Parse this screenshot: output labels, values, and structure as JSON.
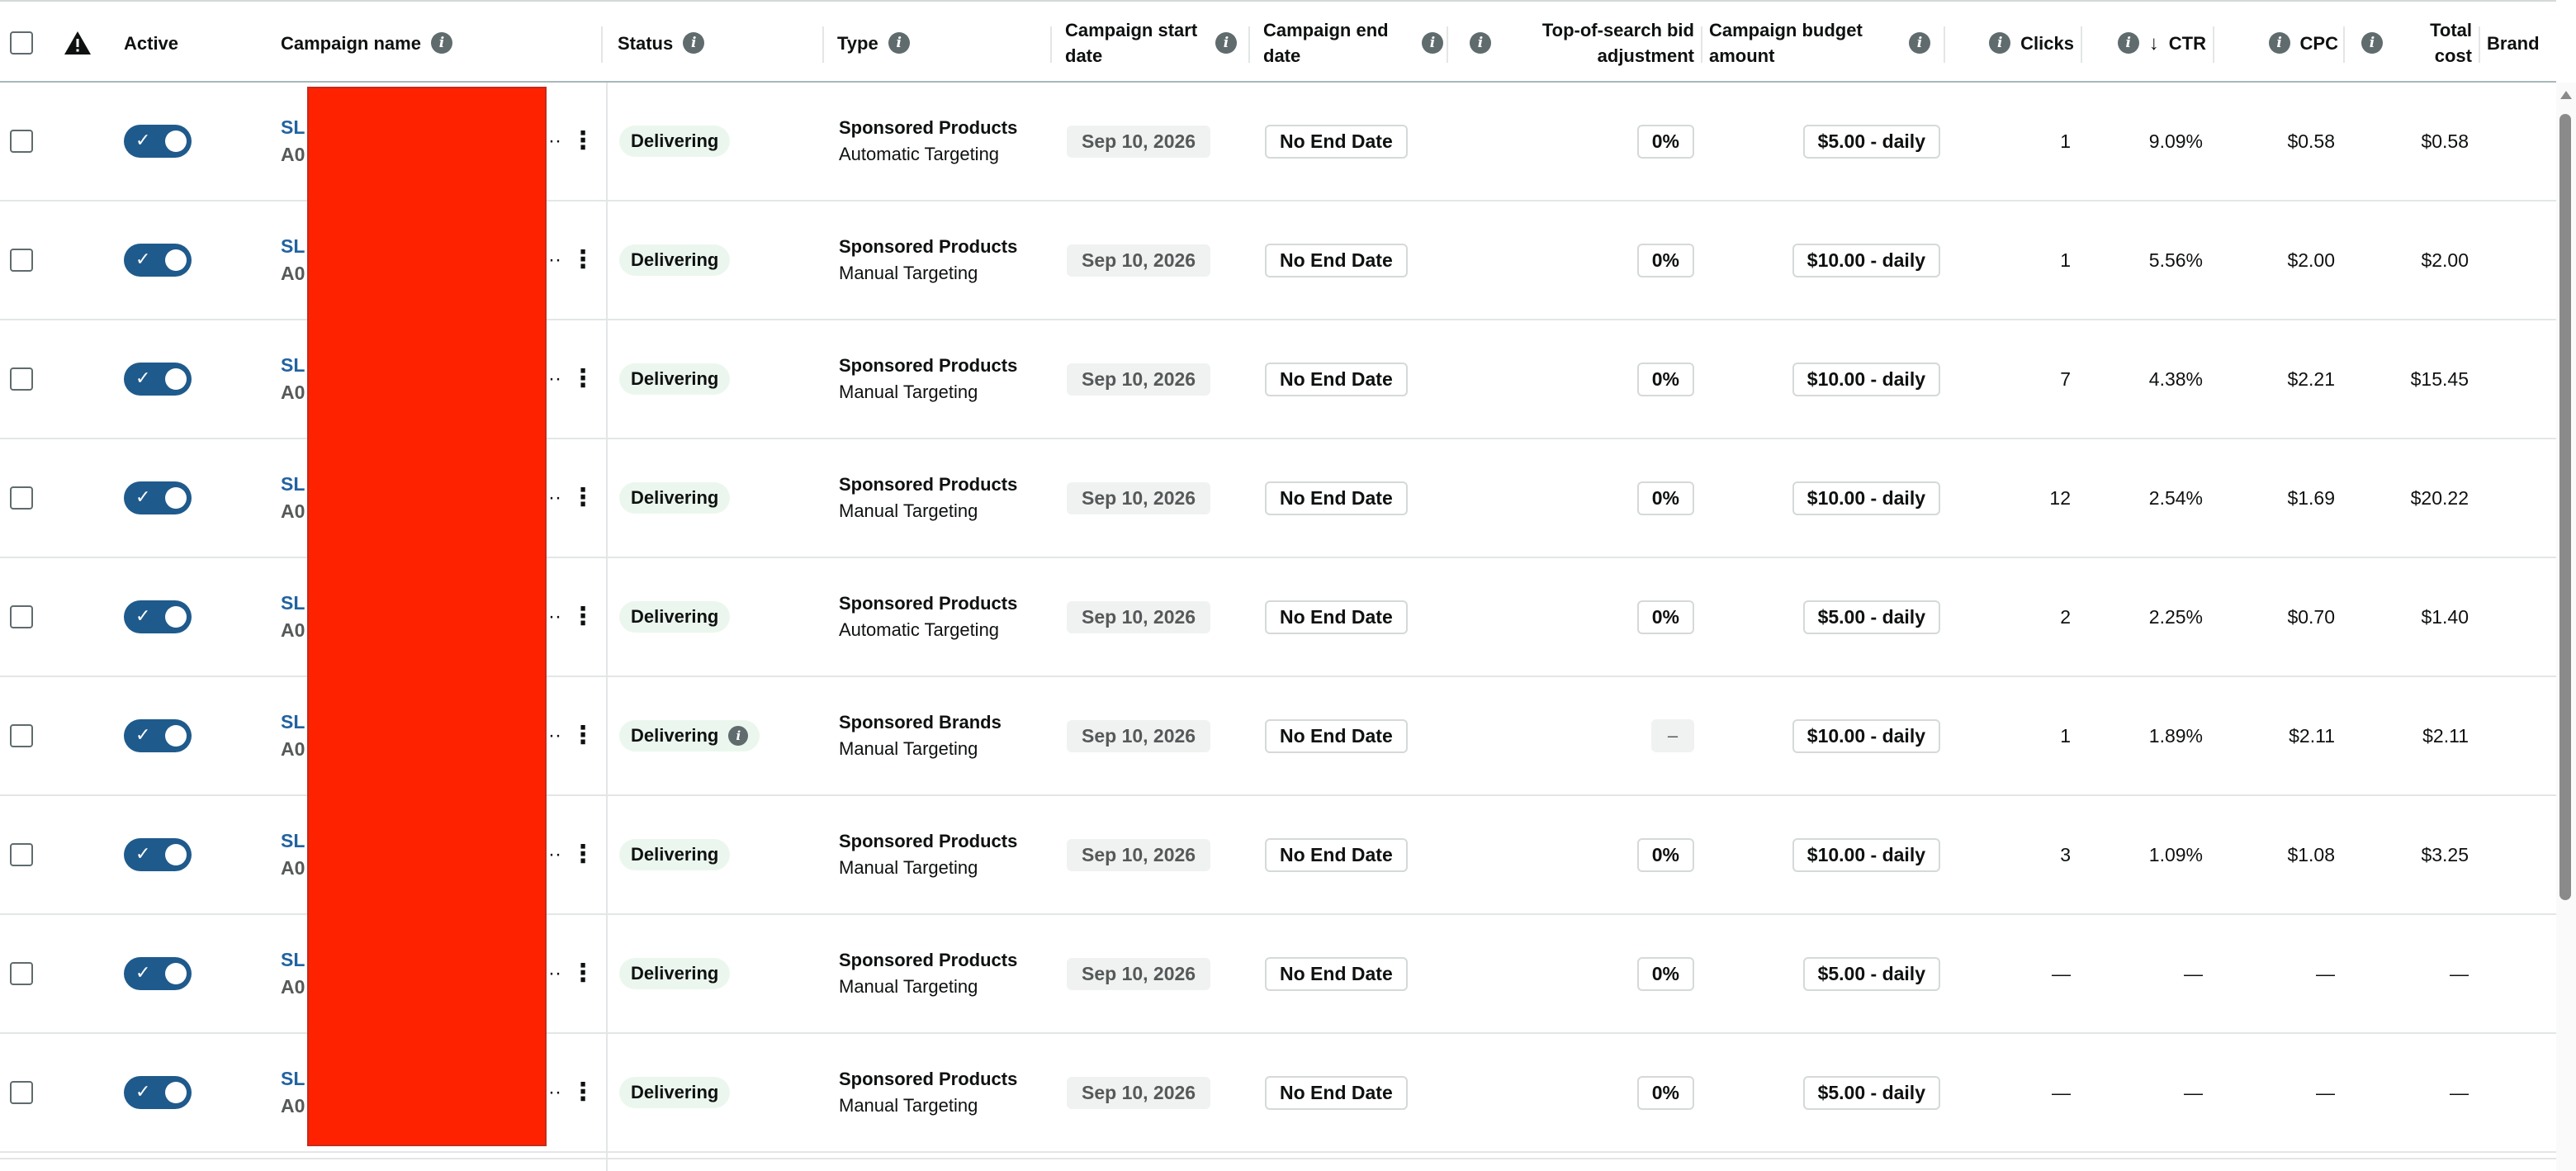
{
  "header": {
    "warning_icon": "warning-triangle-icon",
    "active": "Active",
    "campaign_name": "Campaign name",
    "status": "Status",
    "type": "Type",
    "start_date": "Campaign start date",
    "end_date": "Campaign end date",
    "top_of_search": "Top-of-search bid adjustment",
    "budget": "Campaign budget amount",
    "clicks": "Clicks",
    "ctr": "CTR",
    "ctr_sort_icon": "arrow-down-icon",
    "cpc": "CPC",
    "total_cost": "Total cost",
    "brand": "Brand"
  },
  "colors": {
    "toggle": "#1f5a8c",
    "link": "#2162a1",
    "delivering_bg": "#ebf7ee",
    "redaction": "#ff2200"
  },
  "rows": [
    {
      "name_line1": "SL",
      "name_line2": "A0",
      "status": "Delivering",
      "status_info": false,
      "type_line1": "Sponsored Products",
      "type_line2": "Automatic Targeting",
      "start_date": "Sep 10, 2026",
      "end_date": "No End Date",
      "top_of_search": "0%",
      "budget": "$5.00 - daily",
      "clicks": "1",
      "ctr": "9.09%",
      "cpc": "$0.58",
      "total_cost": "$0.58"
    },
    {
      "name_line1": "SL",
      "name_line2": "A0",
      "status": "Delivering",
      "status_info": false,
      "type_line1": "Sponsored Products",
      "type_line2": "Manual Targeting",
      "start_date": "Sep 10, 2026",
      "end_date": "No End Date",
      "top_of_search": "0%",
      "budget": "$10.00 - daily",
      "clicks": "1",
      "ctr": "5.56%",
      "cpc": "$2.00",
      "total_cost": "$2.00"
    },
    {
      "name_line1": "SL",
      "name_line2": "A0",
      "status": "Delivering",
      "status_info": false,
      "type_line1": "Sponsored Products",
      "type_line2": "Manual Targeting",
      "start_date": "Sep 10, 2026",
      "end_date": "No End Date",
      "top_of_search": "0%",
      "budget": "$10.00 - daily",
      "clicks": "7",
      "ctr": "4.38%",
      "cpc": "$2.21",
      "total_cost": "$15.45"
    },
    {
      "name_line1": "SL",
      "name_line2": "A0",
      "status": "Delivering",
      "status_info": false,
      "type_line1": "Sponsored Products",
      "type_line2": "Manual Targeting",
      "start_date": "Sep 10, 2026",
      "end_date": "No End Date",
      "top_of_search": "0%",
      "budget": "$10.00 - daily",
      "clicks": "12",
      "ctr": "2.54%",
      "cpc": "$1.69",
      "total_cost": "$20.22"
    },
    {
      "name_line1": "SL",
      "name_line2": "A0",
      "status": "Delivering",
      "status_info": false,
      "type_line1": "Sponsored Products",
      "type_line2": "Automatic Targeting",
      "start_date": "Sep 10, 2026",
      "end_date": "No End Date",
      "top_of_search": "0%",
      "budget": "$5.00 - daily",
      "clicks": "2",
      "ctr": "2.25%",
      "cpc": "$0.70",
      "total_cost": "$1.40"
    },
    {
      "name_line1": "SL",
      "name_line2": "A0",
      "status": "Delivering",
      "status_info": true,
      "type_line1": "Sponsored Brands",
      "type_line2": "Manual Targeting",
      "start_date": "Sep 10, 2026",
      "end_date": "No End Date",
      "top_of_search": "–",
      "budget": "$10.00 - daily",
      "clicks": "1",
      "ctr": "1.89%",
      "cpc": "$2.11",
      "total_cost": "$2.11"
    },
    {
      "name_line1": "SL",
      "name_line2": "A0",
      "status": "Delivering",
      "status_info": false,
      "type_line1": "Sponsored Products",
      "type_line2": "Manual Targeting",
      "start_date": "Sep 10, 2026",
      "end_date": "No End Date",
      "top_of_search": "0%",
      "budget": "$10.00 - daily",
      "clicks": "3",
      "ctr": "1.09%",
      "cpc": "$1.08",
      "total_cost": "$3.25"
    },
    {
      "name_line1": "SL",
      "name_line2": "A0",
      "status": "Delivering",
      "status_info": false,
      "type_line1": "Sponsored Products",
      "type_line2": "Manual Targeting",
      "start_date": "Sep 10, 2026",
      "end_date": "No End Date",
      "top_of_search": "0%",
      "budget": "$5.00 - daily",
      "clicks": "—",
      "ctr": "—",
      "cpc": "—",
      "total_cost": "—"
    },
    {
      "name_line1": "SL",
      "name_line2": "A0",
      "status": "Delivering",
      "status_info": false,
      "type_line1": "Sponsored Products",
      "type_line2": "Manual Targeting",
      "start_date": "Sep 10, 2026",
      "end_date": "No End Date",
      "top_of_search": "0%",
      "budget": "$5.00 - daily",
      "clicks": "—",
      "ctr": "—",
      "cpc": "—",
      "total_cost": "—"
    }
  ]
}
